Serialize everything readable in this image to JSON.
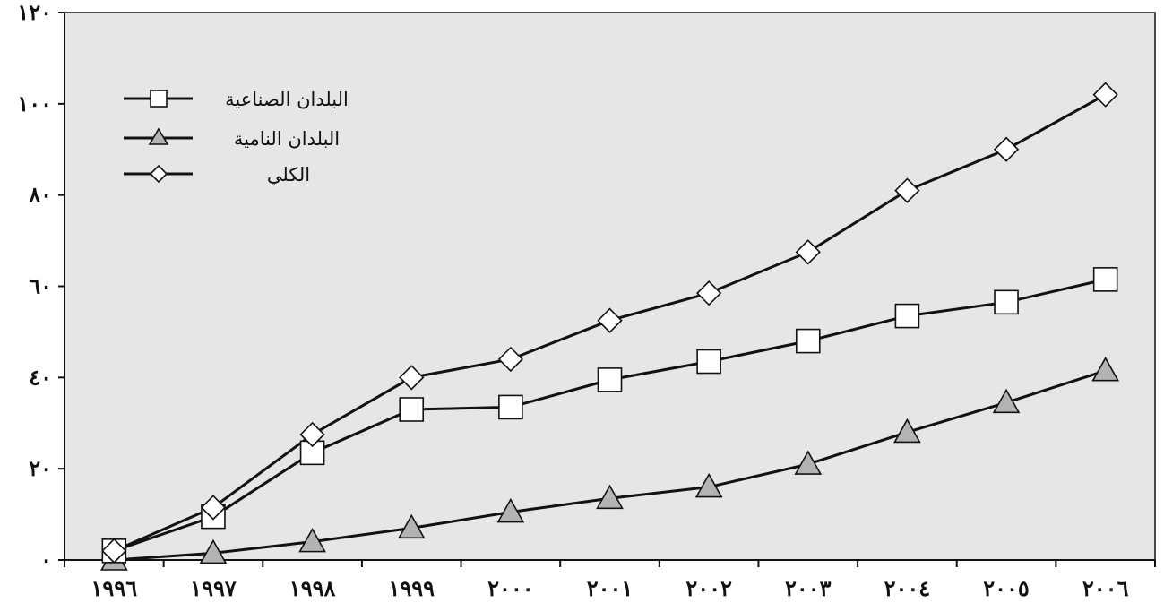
{
  "chart_data": {
    "type": "line",
    "categories": [
      "١٩٩٦",
      "١٩٩٧",
      "١٩٩٨",
      "١٩٩٩",
      "٢٠٠٠",
      "٢٠٠١",
      "٢٠٠٢",
      "٢٠٠٣",
      "٢٠٠٤",
      "٢٠٠٥",
      "٢٠٠٦"
    ],
    "ylim": [
      0,
      120
    ],
    "yticks": [
      0,
      20,
      40,
      60,
      80,
      100,
      120
    ],
    "ytick_labels": [
      "٠",
      "٢٠",
      "٤٠",
      "٦٠",
      "٨٠",
      "١٠٠",
      "١٢٠"
    ],
    "grid": false,
    "legend_position": "top-left",
    "series": [
      {
        "name": "البلدان الصناعية",
        "marker": "square",
        "marker_fill": "#ffffff",
        "values": [
          2,
          9.5,
          23.5,
          33,
          33.5,
          39.5,
          43.5,
          48,
          53.5,
          56.5,
          61.5
        ]
      },
      {
        "name": "البلدان النامية",
        "marker": "triangle",
        "marker_fill": "#b3b3b3",
        "values": [
          0,
          1.5,
          4,
          7,
          10.5,
          13.5,
          16,
          21,
          28,
          34.5,
          41.5
        ]
      },
      {
        "name": "الكلي",
        "marker": "diamond",
        "marker_fill": "#ffffff",
        "values": [
          2,
          11.5,
          27.5,
          40,
          44,
          52.5,
          58.5,
          67.5,
          81,
          90,
          102
        ]
      }
    ]
  },
  "colors": {
    "plot_background": "#e6e6e6",
    "line": "#111111"
  }
}
